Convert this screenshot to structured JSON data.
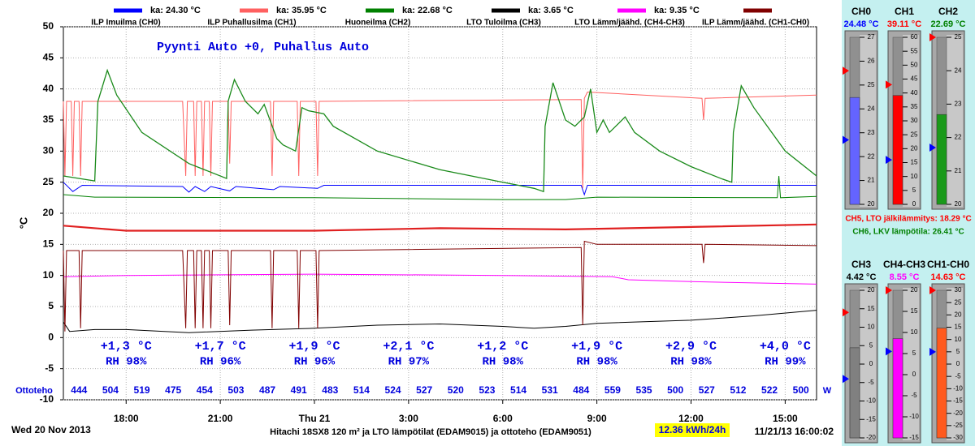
{
  "chart_data": {
    "type": "line",
    "subtitle": "Pyynti Auto +0, Puhallus Auto",
    "y_label": "°C",
    "xlim": [
      16,
      40
    ],
    "xticks": [
      {
        "value": 18,
        "label": "18:00"
      },
      {
        "value": 21,
        "label": "21:00"
      },
      {
        "value": 24,
        "label": "Thu 21"
      },
      {
        "value": 27,
        "label": "3:00"
      },
      {
        "value": 30,
        "label": "6:00"
      },
      {
        "value": 33,
        "label": "9:00"
      },
      {
        "value": 36,
        "label": "12:00"
      },
      {
        "value": 39,
        "label": "15:00"
      }
    ],
    "ylim": [
      -10,
      50
    ],
    "yticks": [
      -10,
      -5,
      0,
      5,
      10,
      15,
      20,
      25,
      30,
      35,
      40,
      45,
      50
    ],
    "grid": true,
    "series": [
      {
        "name": "ILP Imuilma (CH0)",
        "avg_label": "ka: 24.30 °C",
        "color": "#0000ff",
        "x": [
          16,
          16.3,
          16.6,
          19.8,
          20,
          20.2,
          20.5,
          20.7,
          21.3,
          21.5,
          22.7,
          22.9,
          24.1,
          24.3,
          32.5,
          32.6,
          32.7,
          40
        ],
        "values": [
          25,
          23.5,
          24.5,
          24.3,
          23.4,
          24.3,
          23.5,
          24.3,
          23.6,
          24.3,
          23.8,
          24.3,
          24,
          24.5,
          24.5,
          23,
          24.5,
          24.5
        ]
      },
      {
        "name": "ILP Puhallusilma (CH1)",
        "avg_label": "ka: 35.95 °C",
        "color": "#ff6060",
        "x": [
          16,
          16.05,
          16.1,
          16.25,
          16.3,
          16.35,
          16.5,
          16.55,
          16.6,
          19.8,
          19.9,
          19.95,
          20.15,
          20.2,
          20.25,
          20.4,
          20.45,
          20.5,
          20.65,
          20.7,
          20.75,
          21.25,
          21.3,
          21.35,
          22.6,
          22.65,
          22.7,
          23.45,
          23.5,
          23.55,
          24.05,
          24.1,
          24.15,
          32.5,
          32.55,
          32.6,
          32.7,
          36.35,
          36.4,
          36.45,
          40
        ],
        "values": [
          38,
          26,
          38,
          38,
          26,
          38,
          38,
          26,
          38,
          38,
          26,
          38,
          38,
          26,
          38,
          38,
          26,
          38,
          38,
          26,
          38,
          38,
          28,
          38,
          38,
          26,
          38,
          38,
          26,
          38,
          38,
          26,
          38,
          38.3,
          24,
          38.5,
          39.5,
          38.5,
          35,
          38.5,
          39
        ]
      },
      {
        "name": "Huoneilma (CH2)",
        "avg_label": "ka: 22.68 °C",
        "color": "#008000",
        "x": [
          16,
          17,
          24,
          30,
          32,
          33,
          38.75,
          38.8,
          38.85,
          40
        ],
        "values": [
          23,
          22.6,
          22.5,
          22.2,
          22.2,
          22.6,
          22.5,
          26,
          22.5,
          22.7
        ]
      },
      {
        "name": "LTO Tuloilma (CH3)",
        "avg_label": "ka: 3.65 °C",
        "color": "#000000",
        "x": [
          16,
          16.2,
          17,
          18,
          20,
          22,
          24,
          26,
          28,
          30,
          31,
          32,
          33,
          36,
          38,
          40
        ],
        "values": [
          2.5,
          1,
          1.3,
          1.3,
          0.8,
          1.2,
          1.5,
          2,
          2.2,
          1.8,
          1.5,
          1.8,
          2.3,
          2.8,
          3.5,
          4.4
        ]
      },
      {
        "name": "LTO Lämm/jäähd. (CH4-CH3)",
        "avg_label": "ka: 9.35 °C",
        "color": "#ff00ff",
        "x": [
          16,
          18,
          24,
          30,
          33.5,
          34,
          36,
          40
        ],
        "values": [
          9.8,
          10,
          10.2,
          10,
          9.8,
          9.3,
          9,
          8.6
        ]
      },
      {
        "name": "ILP Lämm/jäähd. (CH1-CH0)",
        "color": "#800000",
        "x": [
          16,
          16.05,
          16.1,
          16.5,
          16.55,
          16.6,
          19.8,
          19.9,
          19.95,
          20.15,
          20.2,
          20.25,
          20.4,
          20.45,
          20.5,
          20.65,
          20.7,
          20.75,
          21.25,
          21.3,
          21.35,
          22.6,
          22.65,
          22.7,
          23.45,
          23.5,
          23.55,
          24.05,
          24.1,
          24.15,
          32.5,
          32.55,
          32.6,
          33,
          36.35,
          36.4,
          36.45,
          40
        ],
        "values": [
          14,
          1,
          14,
          14,
          1.5,
          14,
          14,
          1.5,
          14,
          14,
          1.5,
          14,
          14,
          1.5,
          14,
          14,
          1.5,
          14,
          14,
          2,
          14,
          14,
          1.5,
          14,
          14,
          1.5,
          14,
          14,
          1.5,
          14,
          14.5,
          2,
          15.5,
          15,
          15,
          12,
          15,
          14.8
        ]
      },
      {
        "color": "#e02020",
        "line_width": 2.2,
        "x": [
          16,
          18,
          24,
          28,
          32,
          36,
          40
        ],
        "values": [
          18,
          17.2,
          17.2,
          17.6,
          17.4,
          17.8,
          18.2
        ]
      },
      {
        "color": "#1a8a1a",
        "line_width": 1.3,
        "x": [
          16,
          17,
          17.1,
          17.4,
          17.7,
          18.5,
          20,
          21.2,
          21.25,
          21.45,
          21.8,
          22.2,
          22.4,
          22.8,
          23,
          23.4,
          23.6,
          23.8,
          24.3,
          24.6,
          26,
          28,
          30,
          31,
          31.3,
          31.35,
          31.6,
          32,
          32.3,
          32.6,
          32.8,
          33,
          33.2,
          33.4,
          33.6,
          33.9,
          34.2,
          35,
          36,
          37,
          37.3,
          37.35,
          37.6,
          38,
          39,
          40
        ],
        "values": [
          26,
          25.2,
          38,
          43,
          39,
          33,
          28,
          25.6,
          38,
          41.5,
          38,
          36,
          37.5,
          32,
          31,
          30,
          37,
          36.5,
          36,
          34,
          30,
          27,
          25,
          24,
          23.5,
          34,
          41,
          35,
          34,
          35.5,
          40,
          33,
          35,
          33,
          34,
          35.5,
          33,
          30,
          27.5,
          25.5,
          25,
          33,
          40.5,
          37,
          30,
          26
        ]
      }
    ],
    "annotations": [
      {
        "x": 18,
        "text": "+1,3 °C",
        "rh": "RH 98%"
      },
      {
        "x": 21,
        "text": "+1,7 °C",
        "rh": "RH 96%"
      },
      {
        "x": 24,
        "text": "+1,9 °C",
        "rh": "RH 96%"
      },
      {
        "x": 27,
        "text": "+2,1 °C",
        "rh": "RH 97%"
      },
      {
        "x": 30,
        "text": "+1,2 °C",
        "rh": "RH 98%"
      },
      {
        "x": 33,
        "text": "+1,9 °C",
        "rh": "RH 98%"
      },
      {
        "x": 36,
        "text": "+2,9 °C",
        "rh": "RH 98%"
      },
      {
        "x": 39,
        "text": "+4,0 °C",
        "rh": "RH 99%"
      }
    ],
    "power": {
      "label": "Ottoteho",
      "unit": "W",
      "values": [
        444,
        504,
        519,
        475,
        454,
        503,
        487,
        491,
        483,
        514,
        524,
        527,
        520,
        523,
        514,
        531,
        484,
        559,
        535,
        500,
        527,
        512,
        522,
        500
      ]
    },
    "footer": {
      "date": "Wed 20 Nov 2013",
      "caption": "Hitachi 18SX8 120 m² ja LTO lämpötilat (EDAM9015) ja ottoteho (EDAM9051)",
      "energy": "12.36 kWh/24h",
      "timestamp": "11/21/13 16:00:02"
    }
  },
  "panel": {
    "gauges": [
      {
        "name": "CH0",
        "reading": "24.48 °C",
        "value": 24.48,
        "color": "#6464ff",
        "text_color": "#0000ff",
        "lim": [
          20,
          27
        ],
        "ticks": [
          20,
          21,
          22,
          23,
          24,
          25,
          26,
          27
        ],
        "high": 25.6,
        "low": 22.7
      },
      {
        "name": "CH1",
        "reading": "39.11 °C",
        "value": 39.11,
        "color": "#ff0000",
        "text_color": "#ff0000",
        "lim": [
          0,
          60
        ],
        "ticks": [
          0,
          5,
          10,
          15,
          20,
          25,
          30,
          35,
          40,
          45,
          50,
          55,
          60
        ],
        "high": 43,
        "low": 16
      },
      {
        "name": "CH2",
        "reading": "22.69 °C",
        "value": 22.69,
        "color": "#1a9a1a",
        "text_color": "#008000",
        "lim": [
          20,
          25
        ],
        "ticks": [
          20,
          21,
          22,
          23,
          24,
          25
        ],
        "high": 25,
        "low": 21.7
      },
      {
        "name": "CH3",
        "reading": "4.42 °C",
        "value": 4.42,
        "color": "#808080",
        "text_color": "#000000",
        "lim": [
          -20,
          20
        ],
        "ticks": [
          -20,
          -15,
          -10,
          -5,
          0,
          5,
          10,
          15,
          20
        ],
        "high": 14,
        "low": -4
      },
      {
        "name": "CH4-CH3",
        "reading": "8.55 °C",
        "value": 8.55,
        "color": "#ff00ff",
        "text_color": "#ff00ff",
        "lim": [
          -15,
          20
        ],
        "ticks": [
          -15,
          -10,
          -5,
          0,
          5,
          10,
          15,
          20
        ],
        "high": 20,
        "low": 5.5
      },
      {
        "name": "CH1-CH0",
        "reading": "14.63 °C",
        "value": 14.63,
        "color": "#ff5a1e",
        "text_color": "#ff0000",
        "lim": [
          -30,
          30
        ],
        "ticks": [
          -30,
          -25,
          -20,
          -15,
          -10,
          -5,
          0,
          5,
          10,
          15,
          20,
          25,
          30
        ],
        "high": 30,
        "low": 5
      }
    ],
    "notes": [
      {
        "text": "CH5, LTO jälkilämmitys: 18.29 °C",
        "color": "#ff0000"
      },
      {
        "text": "CH6, LKV lämpötila: 26.41 °C",
        "color": "#008000"
      }
    ]
  }
}
